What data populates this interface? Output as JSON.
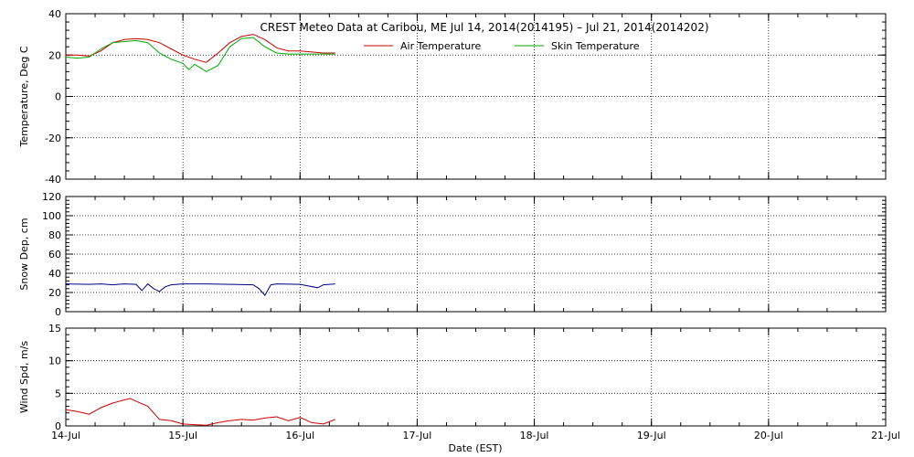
{
  "title": "CREST Meteo Data at Caribou, ME   Jul 14, 2014(2014195) – Jul 21, 2014(2014202)",
  "xlabel": "Date (EST)",
  "x_ticks": [
    "14-Jul",
    "15-Jul",
    "16-Jul",
    "17-Jul",
    "18-Jul",
    "19-Jul",
    "20-Jul",
    "21-Jul"
  ],
  "chart_data": [
    {
      "type": "line",
      "ylabel": "Temperature, Deg C",
      "ylim": [
        -40,
        40
      ],
      "yticks": [
        -40,
        -20,
        0,
        20,
        40
      ],
      "xlim": [
        0,
        7
      ],
      "legend": "top",
      "grid": true,
      "series": [
        {
          "name": "Air Temperature",
          "color": "#cc0000",
          "x": [
            0,
            0.1,
            0.2,
            0.3,
            0.4,
            0.5,
            0.6,
            0.7,
            0.8,
            0.9,
            1.0,
            1.1,
            1.2,
            1.3,
            1.4,
            1.5,
            1.6,
            1.7,
            1.8,
            1.9,
            2.0,
            2.1,
            2.2,
            2.3
          ],
          "values": [
            20,
            20,
            19.5,
            22,
            26,
            27.5,
            28,
            27.5,
            26,
            23,
            20,
            18,
            16.5,
            21,
            26,
            29,
            30,
            27.5,
            23.5,
            22,
            22,
            21.5,
            21,
            21
          ]
        },
        {
          "name": "Skin Temperature",
          "color": "#00aa00",
          "x": [
            0,
            0.1,
            0.2,
            0.3,
            0.4,
            0.5,
            0.6,
            0.7,
            0.8,
            0.9,
            1.0,
            1.05,
            1.1,
            1.2,
            1.3,
            1.4,
            1.5,
            1.6,
            1.7,
            1.8,
            1.9,
            2.0,
            2.1,
            2.2,
            2.3
          ],
          "values": [
            19,
            18.5,
            19,
            23,
            26,
            26.5,
            27,
            26,
            21,
            18,
            16,
            13,
            15.5,
            12,
            15,
            24,
            28,
            28.5,
            24,
            21,
            20.5,
            20.5,
            20.5,
            20.5,
            20.5
          ]
        }
      ]
    },
    {
      "type": "line",
      "ylabel": "Snow Dep, cm",
      "ylim": [
        0,
        120
      ],
      "yticks": [
        0,
        20,
        40,
        60,
        80,
        100,
        120
      ],
      "xlim": [
        0,
        7
      ],
      "grid": true,
      "series": [
        {
          "color": "#000080",
          "x": [
            0,
            0.2,
            0.3,
            0.4,
            0.5,
            0.6,
            0.65,
            0.7,
            0.75,
            0.8,
            0.85,
            0.9,
            1.0,
            1.2,
            1.4,
            1.6,
            1.65,
            1.7,
            1.75,
            1.8,
            2.0,
            2.15,
            2.2,
            2.3
          ],
          "values": [
            29,
            28.5,
            29,
            28,
            29,
            28.5,
            22,
            29,
            24,
            21,
            26,
            28,
            29,
            29,
            28.5,
            28,
            24,
            17,
            28,
            29,
            28.5,
            25,
            28,
            29
          ]
        }
      ]
    },
    {
      "type": "line",
      "ylabel": "Wind Spd, m/s",
      "ylim": [
        0,
        15
      ],
      "yticks": [
        0,
        5,
        10,
        15
      ],
      "xlim": [
        0,
        7
      ],
      "grid": true,
      "series": [
        {
          "color": "#cc0000",
          "x": [
            0,
            0.1,
            0.2,
            0.3,
            0.4,
            0.5,
            0.55,
            0.6,
            0.7,
            0.8,
            0.9,
            1.0,
            1.1,
            1.2,
            1.3,
            1.4,
            1.5,
            1.6,
            1.7,
            1.8,
            1.9,
            2.0,
            2.1,
            2.2,
            2.3
          ],
          "values": [
            2.5,
            2.2,
            1.8,
            2.8,
            3.5,
            4.0,
            4.2,
            3.8,
            3.0,
            1.0,
            0.8,
            0.3,
            0.2,
            0.1,
            0.5,
            0.8,
            1.0,
            0.9,
            1.2,
            1.4,
            0.8,
            1.3,
            0.5,
            0.3,
            1.0
          ]
        }
      ]
    }
  ]
}
